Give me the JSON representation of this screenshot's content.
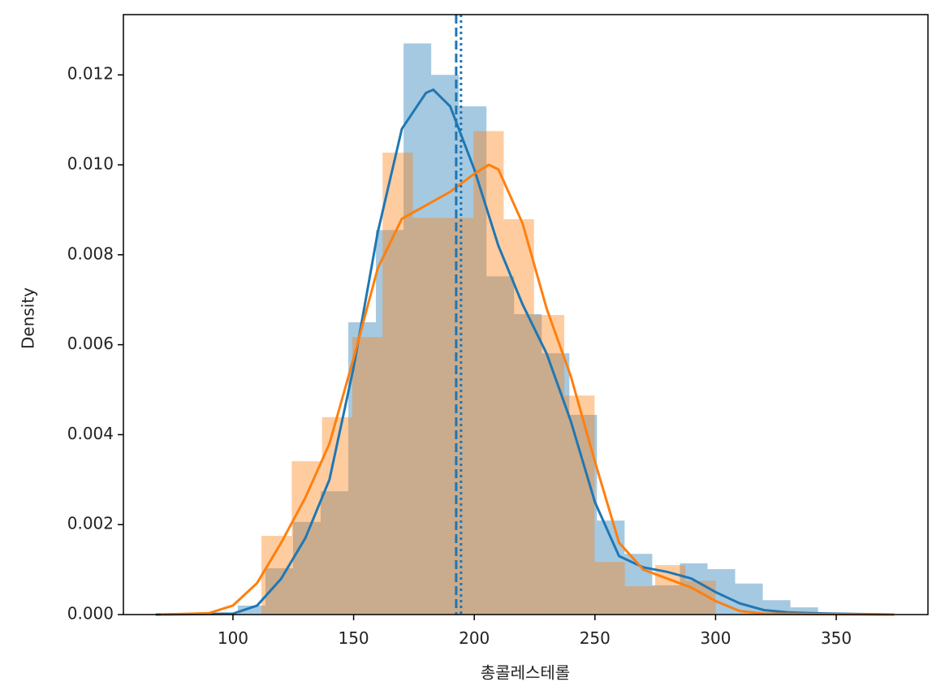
{
  "chart_data": {
    "type": "histogram",
    "xlabel": "총콜레스테롤",
    "ylabel": "Density",
    "xlim": [
      54.6,
      388
    ],
    "ylim": [
      0,
      0.01334
    ],
    "xticks": [
      100,
      150,
      200,
      250,
      300,
      350
    ],
    "yticks": [
      {
        "value": 0,
        "label": "0.000"
      },
      0.002,
      0.004,
      0.006,
      0.008,
      {
        "value": 0.01,
        "label": "0.010"
      },
      0.012
    ],
    "histograms": [
      {
        "color": "#1f77b4",
        "opacity": 0.4,
        "bins": [
          102.0,
          113.45,
          124.9,
          136.35,
          147.8,
          159.25,
          170.7,
          182.15,
          193.6,
          205.05,
          216.5,
          227.95,
          239.4,
          250.85,
          262.3,
          273.75,
          285.2,
          296.65,
          308.1,
          319.55,
          331.0,
          342.45
        ],
        "counts": [
          0.0002,
          0.00103,
          0.00206,
          0.00274,
          0.0065,
          0.00855,
          0.0127,
          0.012,
          0.0113,
          0.00752,
          0.00668,
          0.00581,
          0.00444,
          0.00209,
          0.00135,
          0.00065,
          0.00114,
          0.00101,
          0.00069,
          0.00032,
          0.00016
        ]
      },
      {
        "color": "#ff7f0e",
        "opacity": 0.4,
        "bins": [
          111.8,
          124.35,
          136.9,
          149.45,
          162.0,
          174.55,
          187.1,
          199.65,
          212.2,
          224.75,
          237.3,
          249.85,
          262.4,
          274.95,
          287.5,
          300.05
        ],
        "counts": [
          0.00175,
          0.00341,
          0.00439,
          0.00617,
          0.01027,
          0.00882,
          0.00882,
          0.01075,
          0.00879,
          0.00666,
          0.00487,
          0.00117,
          0.00063,
          0.0011,
          0.00075
        ]
      }
    ],
    "kde": [
      {
        "color": "#1f77b4",
        "x": [
          68,
          100,
          110,
          120,
          130,
          140,
          150,
          160,
          170,
          180,
          183,
          190,
          200,
          210,
          220,
          230,
          240,
          250,
          260,
          270,
          280,
          290,
          300,
          310,
          320,
          330,
          340,
          360,
          374
        ],
        "y": [
          0,
          2e-05,
          0.0002,
          0.0008,
          0.0017,
          0.003,
          0.0055,
          0.0085,
          0.0108,
          0.0116,
          0.01167,
          0.0113,
          0.0099,
          0.0082,
          0.0069,
          0.0058,
          0.0043,
          0.0025,
          0.0013,
          0.00105,
          0.00095,
          0.0008,
          0.0005,
          0.00025,
          0.0001,
          5e-05,
          3e-05,
          1e-05,
          0
        ]
      },
      {
        "color": "#ff7f0e",
        "x": [
          70,
          90,
          100,
          110,
          120,
          130,
          140,
          150,
          160,
          170,
          180,
          190,
          200,
          206,
          210,
          220,
          230,
          240,
          250,
          260,
          270,
          280,
          290,
          300,
          310,
          320,
          340,
          374
        ],
        "y": [
          0,
          3e-05,
          0.0002,
          0.0007,
          0.0016,
          0.0026,
          0.0038,
          0.0057,
          0.0077,
          0.0088,
          0.0091,
          0.0094,
          0.0098,
          0.01,
          0.0099,
          0.0087,
          0.0068,
          0.0053,
          0.0034,
          0.0016,
          0.001,
          0.0008,
          0.0006,
          0.0003,
          8e-05,
          2e-05,
          1e-05,
          0
        ]
      }
    ],
    "vlines": [
      {
        "x": 192.5,
        "color": "#1f77b4",
        "style": "dashed"
      },
      {
        "x": 194.5,
        "color": "#1f77b4",
        "style": "dotted"
      }
    ]
  }
}
